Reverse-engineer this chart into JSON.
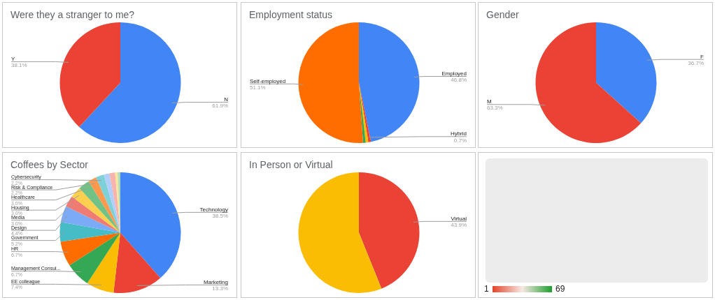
{
  "chart_data": [
    {
      "type": "pie",
      "title": "Were they a stranger to me?",
      "categories": [
        "N",
        "Y"
      ],
      "values": [
        61.9,
        38.1
      ],
      "colors": [
        "#4285f4",
        "#ea4335"
      ],
      "value_labels": [
        "61.9%",
        "38.1%"
      ]
    },
    {
      "type": "pie",
      "title": "Employment status",
      "categories": [
        "Employed",
        "Hybrid",
        null,
        null,
        "Self-employed"
      ],
      "values": [
        46.8,
        0.7,
        0.7,
        0.7,
        51.1
      ],
      "colors": [
        "#4285f4",
        "#ea4335",
        "#fbbc04",
        "#34a853",
        "#ff6d01"
      ],
      "value_labels": [
        "46.8%",
        "0.7%",
        null,
        null,
        "51.1%"
      ]
    },
    {
      "type": "pie",
      "title": "Gender",
      "categories": [
        "F",
        "M"
      ],
      "values": [
        36.7,
        63.3
      ],
      "colors": [
        "#4285f4",
        "#ea4335"
      ],
      "value_labels": [
        "36.7%",
        "63.3%"
      ]
    },
    {
      "type": "pie",
      "title": "Coffees by Sector",
      "categories": [
        "Technology",
        "Marketing",
        "EE colleague",
        "Management Consul...",
        "HR",
        "Government",
        "Design",
        "Media",
        "Housing",
        "Healthcare",
        "Risk & Compliance",
        "Cybersecurity",
        null,
        null,
        null,
        null
      ],
      "values": [
        38.5,
        13.3,
        7.4,
        6.7,
        6.7,
        5.2,
        4.4,
        3.0,
        3.0,
        3.0,
        2.2,
        2.2,
        1.5,
        1.5,
        0.7,
        0.7
      ],
      "colors": [
        "#4285f4",
        "#ea4335",
        "#fbbc04",
        "#34a853",
        "#ff6d01",
        "#46bdc6",
        "#7baaf7",
        "#f07b72",
        "#fcd04f",
        "#71c287",
        "#ff994d",
        "#7ed1d7",
        "#b3cefb",
        "#f7b4ae",
        "#fde49b",
        "#aedcba"
      ],
      "value_labels": [
        "38.5%",
        "13.3%",
        "7.4%",
        "6.7%",
        "6.7%",
        "5.2%",
        "4.4%",
        "3.0%",
        "3.0%",
        "3.0%",
        "2.2%",
        "2.2%",
        null,
        null,
        null,
        null
      ]
    },
    {
      "type": "pie",
      "title": "In Person or Virtual",
      "categories": [
        "Virtual",
        null
      ],
      "values": [
        43.9,
        56.1
      ],
      "colors": [
        "#ea4335",
        "#fbbc04"
      ],
      "value_labels": [
        "43.9%",
        null
      ]
    },
    {
      "type": "other",
      "annotations": [
        "1",
        "69"
      ]
    }
  ]
}
